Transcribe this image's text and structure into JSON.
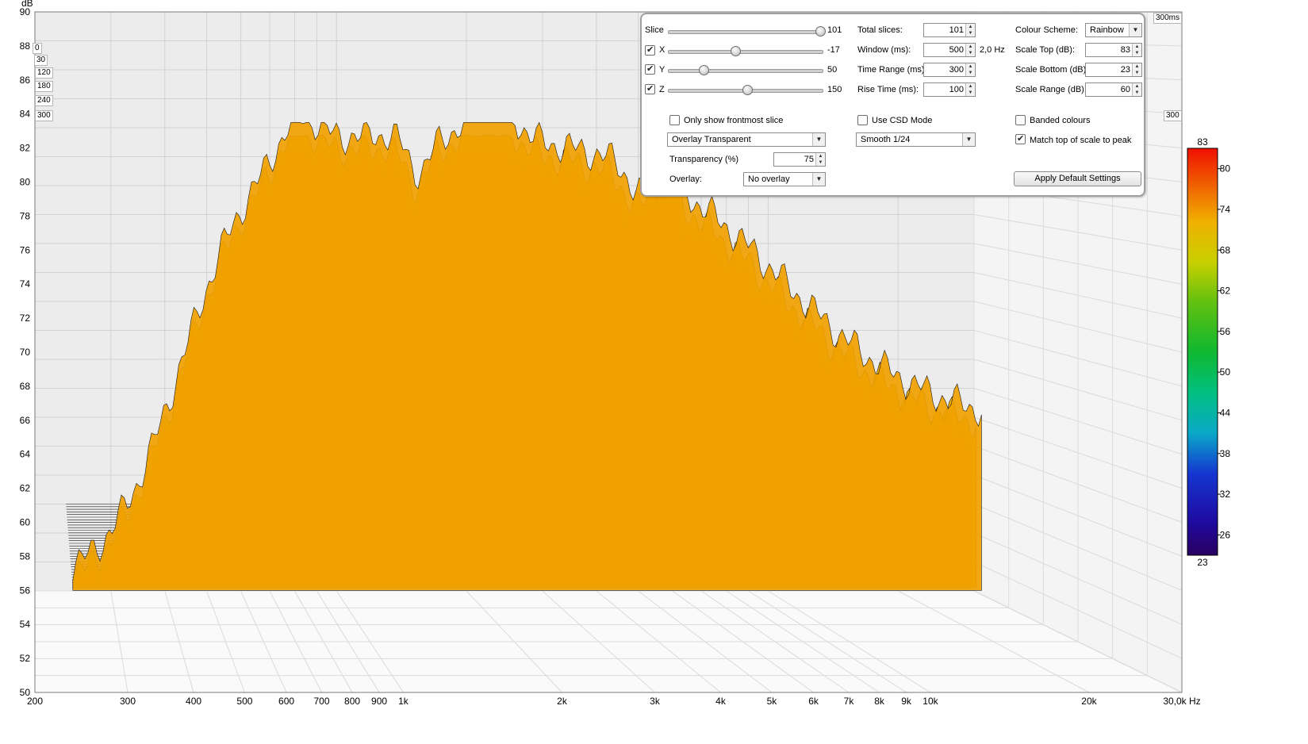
{
  "chart_data": {
    "type": "waterfall",
    "yunit": "dB",
    "y_ticks": [
      90,
      88,
      86,
      84,
      82,
      80,
      78,
      76,
      74,
      72,
      70,
      68,
      66,
      64,
      62,
      60,
      58,
      56,
      54,
      52,
      50
    ],
    "x_ticks": [
      "200",
      "300",
      "400",
      "500",
      "600",
      "700",
      "800",
      "900",
      "1k",
      "2k",
      "3k",
      "4k",
      "5k",
      "6k",
      "7k",
      "8k",
      "9k",
      "10k",
      "20k",
      "30,0k Hz"
    ],
    "x_tick_freqs": [
      200,
      300,
      400,
      500,
      600,
      700,
      800,
      900,
      1000,
      2000,
      3000,
      4000,
      5000,
      6000,
      7000,
      8000,
      9000,
      10000,
      20000,
      30000
    ],
    "xlim_hz": [
      200,
      30000
    ],
    "ylim_db": [
      50,
      90
    ],
    "time_axis_labels": [
      "0",
      "30",
      "120",
      "180",
      "240",
      "300"
    ],
    "time_axis_end_label": "300ms",
    "time_axis_right_label": "300",
    "colour_scale": {
      "top": "83",
      "bottom": "23",
      "ticks": [
        "80",
        "74",
        "68",
        "62",
        "56",
        "50",
        "44",
        "38",
        "32",
        "26"
      ]
    },
    "front_slice_peak_db": 83.5,
    "total_slices": 101,
    "time_range_ms": 300,
    "floor_db": 56
  },
  "panel": {
    "slice_label": "Slice",
    "slice_value": "101",
    "x_label": "X",
    "x_value": "-17",
    "y_label": "Y",
    "y_value": "50",
    "z_label": "Z",
    "z_value": "150",
    "total_slices_label": "Total slices:",
    "total_slices_value": "101",
    "window_label": "Window (ms):",
    "window_value": "500",
    "window_hz": "2,0 Hz",
    "time_range_label": "Time Range (ms):",
    "time_range_value": "300",
    "rise_time_label": "Rise Time (ms):",
    "rise_time_value": "100",
    "colour_scheme_label": "Colour Scheme:",
    "colour_scheme_value": "Rainbow",
    "scale_top_label": "Scale Top (dB):",
    "scale_top_value": "83",
    "scale_bottom_label": "Scale Bottom (dB):",
    "scale_bottom_value": "23",
    "scale_range_label": "Scale Range (dB):",
    "scale_range_value": "60",
    "only_frontmost_label": "Only show frontmost slice",
    "use_csd_label": "Use CSD Mode",
    "banded_colours_label": "Banded colours",
    "overlay_mode_value": "Overlay Transparent",
    "smoothing_value": "Smooth 1/24",
    "match_top_label": "Match top of scale to peak",
    "transparency_label": "Transparency (%)",
    "transparency_value": "75",
    "overlay_label": "Overlay:",
    "overlay_value": "No overlay",
    "apply_defaults_label": "Apply Default Settings"
  }
}
